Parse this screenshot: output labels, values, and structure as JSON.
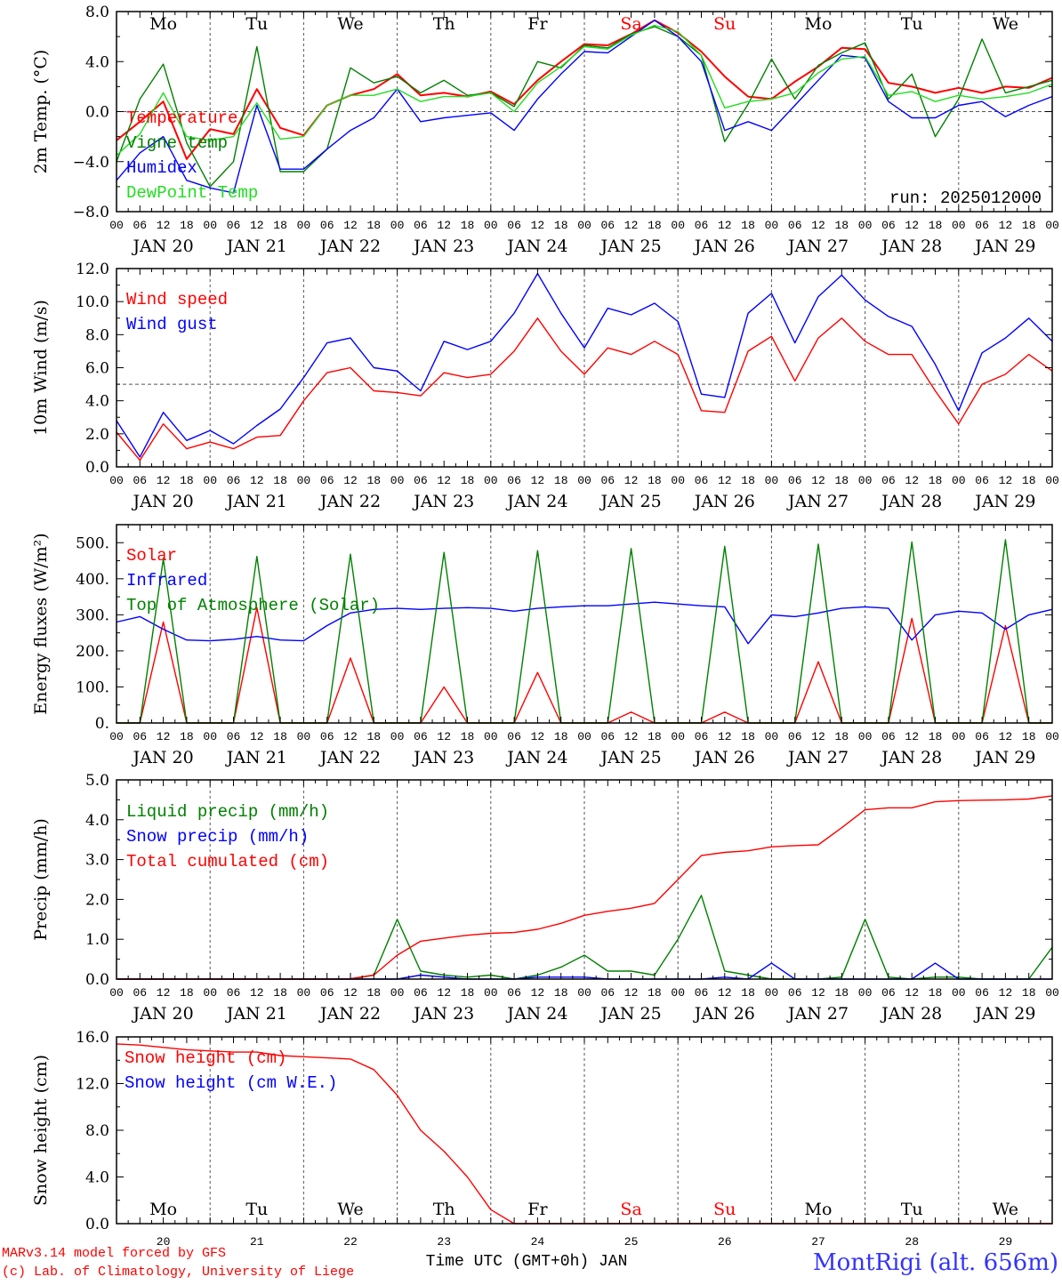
{
  "footer": {
    "model_line1": "MARv3.14 model forced by GFS",
    "model_line2": "(c) Lab. of Climatology, University of Liege",
    "xlabel": "Time UTC (GMT+0h) JAN",
    "station": "MontRigi (alt. 656m)"
  },
  "colors": {
    "red": "#ff0000",
    "blue": "#0000ff",
    "green": "#008000",
    "lightgreen": "#22dd22",
    "grid": "#555555"
  },
  "days": {
    "labels": [
      "JAN 20",
      "JAN 21",
      "JAN 22",
      "JAN 23",
      "JAN 24",
      "JAN 25",
      "JAN 26",
      "JAN 27",
      "JAN 28",
      "JAN 29"
    ],
    "numbers": [
      "20",
      "21",
      "22",
      "23",
      "24",
      "25",
      "26",
      "27",
      "28",
      "29"
    ],
    "weekdays": [
      "Mo",
      "Tu",
      "We",
      "Th",
      "Fr",
      "Sa",
      "Su",
      "Mo",
      "Tu",
      "We"
    ],
    "weekday_colors": [
      "#000000",
      "#000000",
      "#000000",
      "#000000",
      "#000000",
      "#ff0000",
      "#ff0000",
      "#000000",
      "#000000",
      "#000000"
    ],
    "hour_ticks": [
      "00",
      "06",
      "12",
      "18"
    ],
    "final_tick": "00"
  },
  "chart_data": [
    {
      "type": "line",
      "ylabel": "2m Temp. (°C)",
      "ylim": [
        -8,
        8
      ],
      "yticks": [
        "−8.0",
        "−4.0",
        "0.0",
        "4.0",
        "8.0"
      ],
      "ytick_values": [
        -8,
        -4,
        0,
        4,
        8
      ],
      "ref_line": 0,
      "run_label": "run: 2025012000",
      "x_hours": [
        0,
        6,
        12,
        18,
        24,
        30,
        36,
        42,
        48,
        54,
        60,
        66,
        72,
        78,
        84,
        90,
        96,
        102,
        108,
        114,
        120,
        126,
        132,
        138,
        144,
        150,
        156,
        162,
        168,
        174,
        180,
        186,
        192,
        198,
        204,
        210,
        216,
        222,
        228,
        234,
        240
      ],
      "series": [
        {
          "name": "Temperature",
          "color": "#ff0000",
          "values": [
            -2.3,
            -0.8,
            0.8,
            -3.8,
            -1.4,
            -1.8,
            1.8,
            -1.3,
            -1.9,
            0.5,
            1.3,
            1.8,
            3.0,
            1.3,
            1.5,
            1.2,
            1.6,
            0.6,
            2.5,
            4.0,
            5.4,
            5.3,
            6.2,
            7.3,
            6.3,
            4.8,
            2.8,
            1.2,
            1.0,
            2.4,
            3.6,
            5.1,
            5.0,
            2.3,
            2.0,
            1.5,
            1.9,
            1.5,
            2.0,
            1.9,
            2.7
          ]
        },
        {
          "name": "Vigne temp",
          "color": "#008000",
          "values": [
            -4.0,
            1.0,
            3.8,
            -2.5,
            -6.0,
            -4.0,
            5.2,
            -4.8,
            -4.8,
            -3.0,
            3.5,
            2.3,
            2.8,
            1.5,
            2.5,
            1.3,
            1.5,
            0.4,
            4.0,
            3.5,
            5.3,
            5.1,
            6.2,
            6.8,
            6.0,
            4.5,
            -2.4,
            0.6,
            4.2,
            1.0,
            3.7,
            4.7,
            5.5,
            1.0,
            3.0,
            -2.0,
            1.0,
            5.8,
            1.5,
            2.0,
            2.5
          ]
        },
        {
          "name": "Humidex",
          "color": "#0000ff",
          "values": [
            -5.5,
            -3.3,
            -2.0,
            -5.5,
            -6.1,
            -6.5,
            0.5,
            -4.6,
            -4.6,
            -3.0,
            -1.5,
            -0.5,
            1.8,
            -0.8,
            -0.5,
            -0.3,
            -0.1,
            -1.5,
            1.0,
            3.0,
            4.8,
            4.7,
            6.0,
            7.3,
            6.0,
            4.0,
            -1.5,
            -0.8,
            -1.5,
            0.5,
            2.5,
            4.5,
            4.3,
            0.8,
            -0.5,
            -0.5,
            0.5,
            0.8,
            -0.4,
            0.5,
            1.2
          ]
        },
        {
          "name": "DewPoint Temp",
          "color": "#22dd22",
          "values": [
            -3.5,
            -1.8,
            1.5,
            -2.0,
            -2.3,
            -2.0,
            0.7,
            -2.2,
            -2.0,
            0.5,
            1.3,
            1.3,
            1.8,
            0.8,
            1.2,
            1.2,
            1.5,
            0.0,
            2.3,
            3.6,
            5.2,
            5.0,
            6.1,
            6.9,
            6.4,
            4.5,
            0.3,
            0.8,
            1.0,
            1.5,
            3.1,
            4.2,
            4.4,
            1.3,
            1.6,
            0.8,
            1.3,
            1.0,
            1.2,
            1.5,
            2.2
          ]
        }
      ]
    },
    {
      "type": "line",
      "ylabel": "10m Wind (m/s)",
      "ylim": [
        0,
        12
      ],
      "yticks": [
        "0.0",
        "2.0",
        "4.0",
        "6.0",
        "8.0",
        "10.0",
        "12.0"
      ],
      "ytick_values": [
        0,
        2,
        4,
        6,
        8,
        10,
        12
      ],
      "ref_line": 5,
      "x_hours": [
        0,
        6,
        12,
        18,
        24,
        30,
        36,
        42,
        48,
        54,
        60,
        66,
        72,
        78,
        84,
        90,
        96,
        102,
        108,
        114,
        120,
        126,
        132,
        138,
        144,
        150,
        156,
        162,
        168,
        174,
        180,
        186,
        192,
        198,
        204,
        210,
        216,
        222,
        228,
        234,
        240
      ],
      "series": [
        {
          "name": "Wind speed",
          "color": "#ff0000",
          "values": [
            2.1,
            0.4,
            2.6,
            1.1,
            1.5,
            1.1,
            1.8,
            1.9,
            4.0,
            5.7,
            6.0,
            4.6,
            4.5,
            4.3,
            5.7,
            5.4,
            5.6,
            7.0,
            9.0,
            7.0,
            5.6,
            7.2,
            6.8,
            7.6,
            6.8,
            3.4,
            3.3,
            7.0,
            7.9,
            5.2,
            7.8,
            9.0,
            7.6,
            6.8,
            6.8,
            4.6,
            2.6,
            5.0,
            5.6,
            6.8,
            5.8
          ]
        },
        {
          "name": "Wind gust",
          "color": "#0000ff",
          "values": [
            2.8,
            0.6,
            3.3,
            1.6,
            2.2,
            1.4,
            2.5,
            3.5,
            5.4,
            7.5,
            7.8,
            6.0,
            5.8,
            4.6,
            7.6,
            7.1,
            7.6,
            9.3,
            11.7,
            9.3,
            7.2,
            9.6,
            9.2,
            9.9,
            8.8,
            4.4,
            4.2,
            9.3,
            10.5,
            7.5,
            10.3,
            11.6,
            10.1,
            9.1,
            8.5,
            6.2,
            3.4,
            6.9,
            7.8,
            9.0,
            7.6
          ]
        }
      ]
    },
    {
      "type": "line",
      "ylabel": "Energy fluxes (W/m²)",
      "ylim": [
        0,
        550
      ],
      "yticks": [
        "0.",
        "100.",
        "200.",
        "300.",
        "400.",
        "500."
      ],
      "ytick_values": [
        0,
        100,
        200,
        300,
        400,
        500
      ],
      "ref_line": null,
      "x_hours": [
        0,
        6,
        12,
        18,
        24,
        30,
        36,
        42,
        48,
        54,
        60,
        66,
        72,
        78,
        84,
        90,
        96,
        102,
        108,
        114,
        120,
        126,
        132,
        138,
        144,
        150,
        156,
        162,
        168,
        174,
        180,
        186,
        192,
        198,
        204,
        210,
        216,
        222,
        228,
        234,
        240
      ],
      "series": [
        {
          "name": "Solar",
          "color": "#ff0000",
          "values": [
            0,
            0,
            280,
            0,
            0,
            0,
            320,
            0,
            0,
            0,
            180,
            0,
            0,
            0,
            100,
            0,
            0,
            0,
            140,
            0,
            0,
            0,
            30,
            0,
            0,
            0,
            30,
            0,
            0,
            0,
            170,
            0,
            0,
            0,
            290,
            0,
            0,
            0,
            270,
            0,
            0
          ]
        },
        {
          "name": "Infrared",
          "color": "#0000ff",
          "values": [
            280,
            295,
            260,
            230,
            228,
            232,
            240,
            230,
            228,
            270,
            305,
            315,
            318,
            315,
            318,
            320,
            318,
            310,
            318,
            322,
            325,
            325,
            330,
            335,
            330,
            325,
            322,
            220,
            300,
            295,
            305,
            318,
            322,
            318,
            230,
            300,
            310,
            305,
            260,
            300,
            315
          ]
        },
        {
          "name": "Top of Atmosphere (Solar)",
          "color": "#008000",
          "values": [
            0,
            0,
            455,
            0,
            0,
            0,
            462,
            0,
            0,
            0,
            468,
            0,
            0,
            0,
            473,
            0,
            0,
            0,
            478,
            0,
            0,
            0,
            484,
            0,
            0,
            0,
            490,
            0,
            0,
            0,
            496,
            0,
            0,
            0,
            502,
            0,
            0,
            0,
            508,
            0,
            0
          ]
        }
      ]
    },
    {
      "type": "line",
      "ylabel": "Precip (mm/h)",
      "ylim": [
        0,
        5
      ],
      "yticks": [
        "0.0",
        "1.0",
        "2.0",
        "3.0",
        "4.0",
        "5.0"
      ],
      "ytick_values": [
        0,
        1,
        2,
        3,
        4,
        5
      ],
      "ref_line": null,
      "x_hours": [
        0,
        6,
        12,
        18,
        24,
        30,
        36,
        42,
        48,
        54,
        60,
        66,
        72,
        78,
        84,
        90,
        96,
        102,
        108,
        114,
        120,
        126,
        132,
        138,
        144,
        150,
        156,
        162,
        168,
        174,
        180,
        186,
        192,
        198,
        204,
        210,
        216,
        222,
        228,
        234,
        240
      ],
      "series": [
        {
          "name": "Liquid precip (mm/h)",
          "color": "#008000",
          "values": [
            0,
            0,
            0,
            0,
            0,
            0,
            0,
            0,
            0,
            0,
            0,
            0.1,
            1.5,
            0.2,
            0.1,
            0.05,
            0.1,
            0,
            0.1,
            0.3,
            0.6,
            0.2,
            0.2,
            0.1,
            1.0,
            2.1,
            0.2,
            0.1,
            0,
            0,
            0,
            0.05,
            1.5,
            0.05,
            0,
            0.05,
            0.05,
            0,
            0,
            0,
            0.8
          ]
        },
        {
          "name": "Snow precip (mm/h)",
          "color": "#0000ff",
          "values": [
            0,
            0,
            0,
            0,
            0,
            0,
            0,
            0,
            0,
            0,
            0,
            0,
            0,
            0.1,
            0.05,
            0,
            0,
            0,
            0.05,
            0.05,
            0.05,
            0,
            0,
            0,
            0,
            0,
            0.05,
            0,
            0.4,
            0,
            0,
            0,
            0,
            0,
            0,
            0.4,
            0,
            0,
            0,
            0,
            0
          ]
        },
        {
          "name": "Total cumulated (cm)",
          "color": "#ff0000",
          "values": [
            0,
            0,
            0,
            0,
            0,
            0,
            0,
            0,
            0,
            0,
            0.01,
            0.1,
            0.6,
            0.95,
            1.03,
            1.1,
            1.15,
            1.17,
            1.25,
            1.4,
            1.6,
            1.7,
            1.78,
            1.9,
            2.5,
            3.1,
            3.18,
            3.22,
            3.32,
            3.35,
            3.37,
            3.8,
            4.25,
            4.3,
            4.3,
            4.45,
            4.48,
            4.49,
            4.5,
            4.52,
            4.6
          ]
        }
      ]
    },
    {
      "type": "line",
      "ylabel": "Snow height (cm)",
      "ylim": [
        0,
        16
      ],
      "yticks": [
        "0.0",
        "4.0",
        "8.0",
        "12.0",
        "16.0"
      ],
      "ytick_values": [
        0,
        4,
        8,
        12,
        16
      ],
      "ref_line": null,
      "x_hours": [
        0,
        6,
        12,
        18,
        24,
        30,
        36,
        42,
        48,
        54,
        60,
        66,
        72,
        78,
        84,
        90,
        96,
        102,
        108,
        114,
        120,
        126,
        132,
        138,
        144,
        150,
        156,
        162,
        168,
        174,
        180,
        186,
        192,
        198,
        204,
        210,
        216,
        222,
        228,
        234,
        240
      ],
      "series": [
        {
          "name": "Snow height (cm)",
          "color": "#ff0000",
          "values": [
            15.4,
            15.3,
            15.1,
            14.9,
            14.8,
            14.7,
            14.7,
            14.4,
            14.3,
            14.2,
            14.1,
            13.2,
            11.0,
            8.0,
            6.2,
            4.0,
            1.2,
            0,
            0,
            0,
            0,
            0,
            0,
            0,
            0,
            0,
            0,
            0,
            0,
            0,
            0,
            0,
            0,
            0,
            0,
            0,
            0,
            0,
            0,
            0,
            0
          ]
        },
        {
          "name": "Snow height (cm W.E.)",
          "color": "#0000ff",
          "values": []
        }
      ]
    }
  ]
}
